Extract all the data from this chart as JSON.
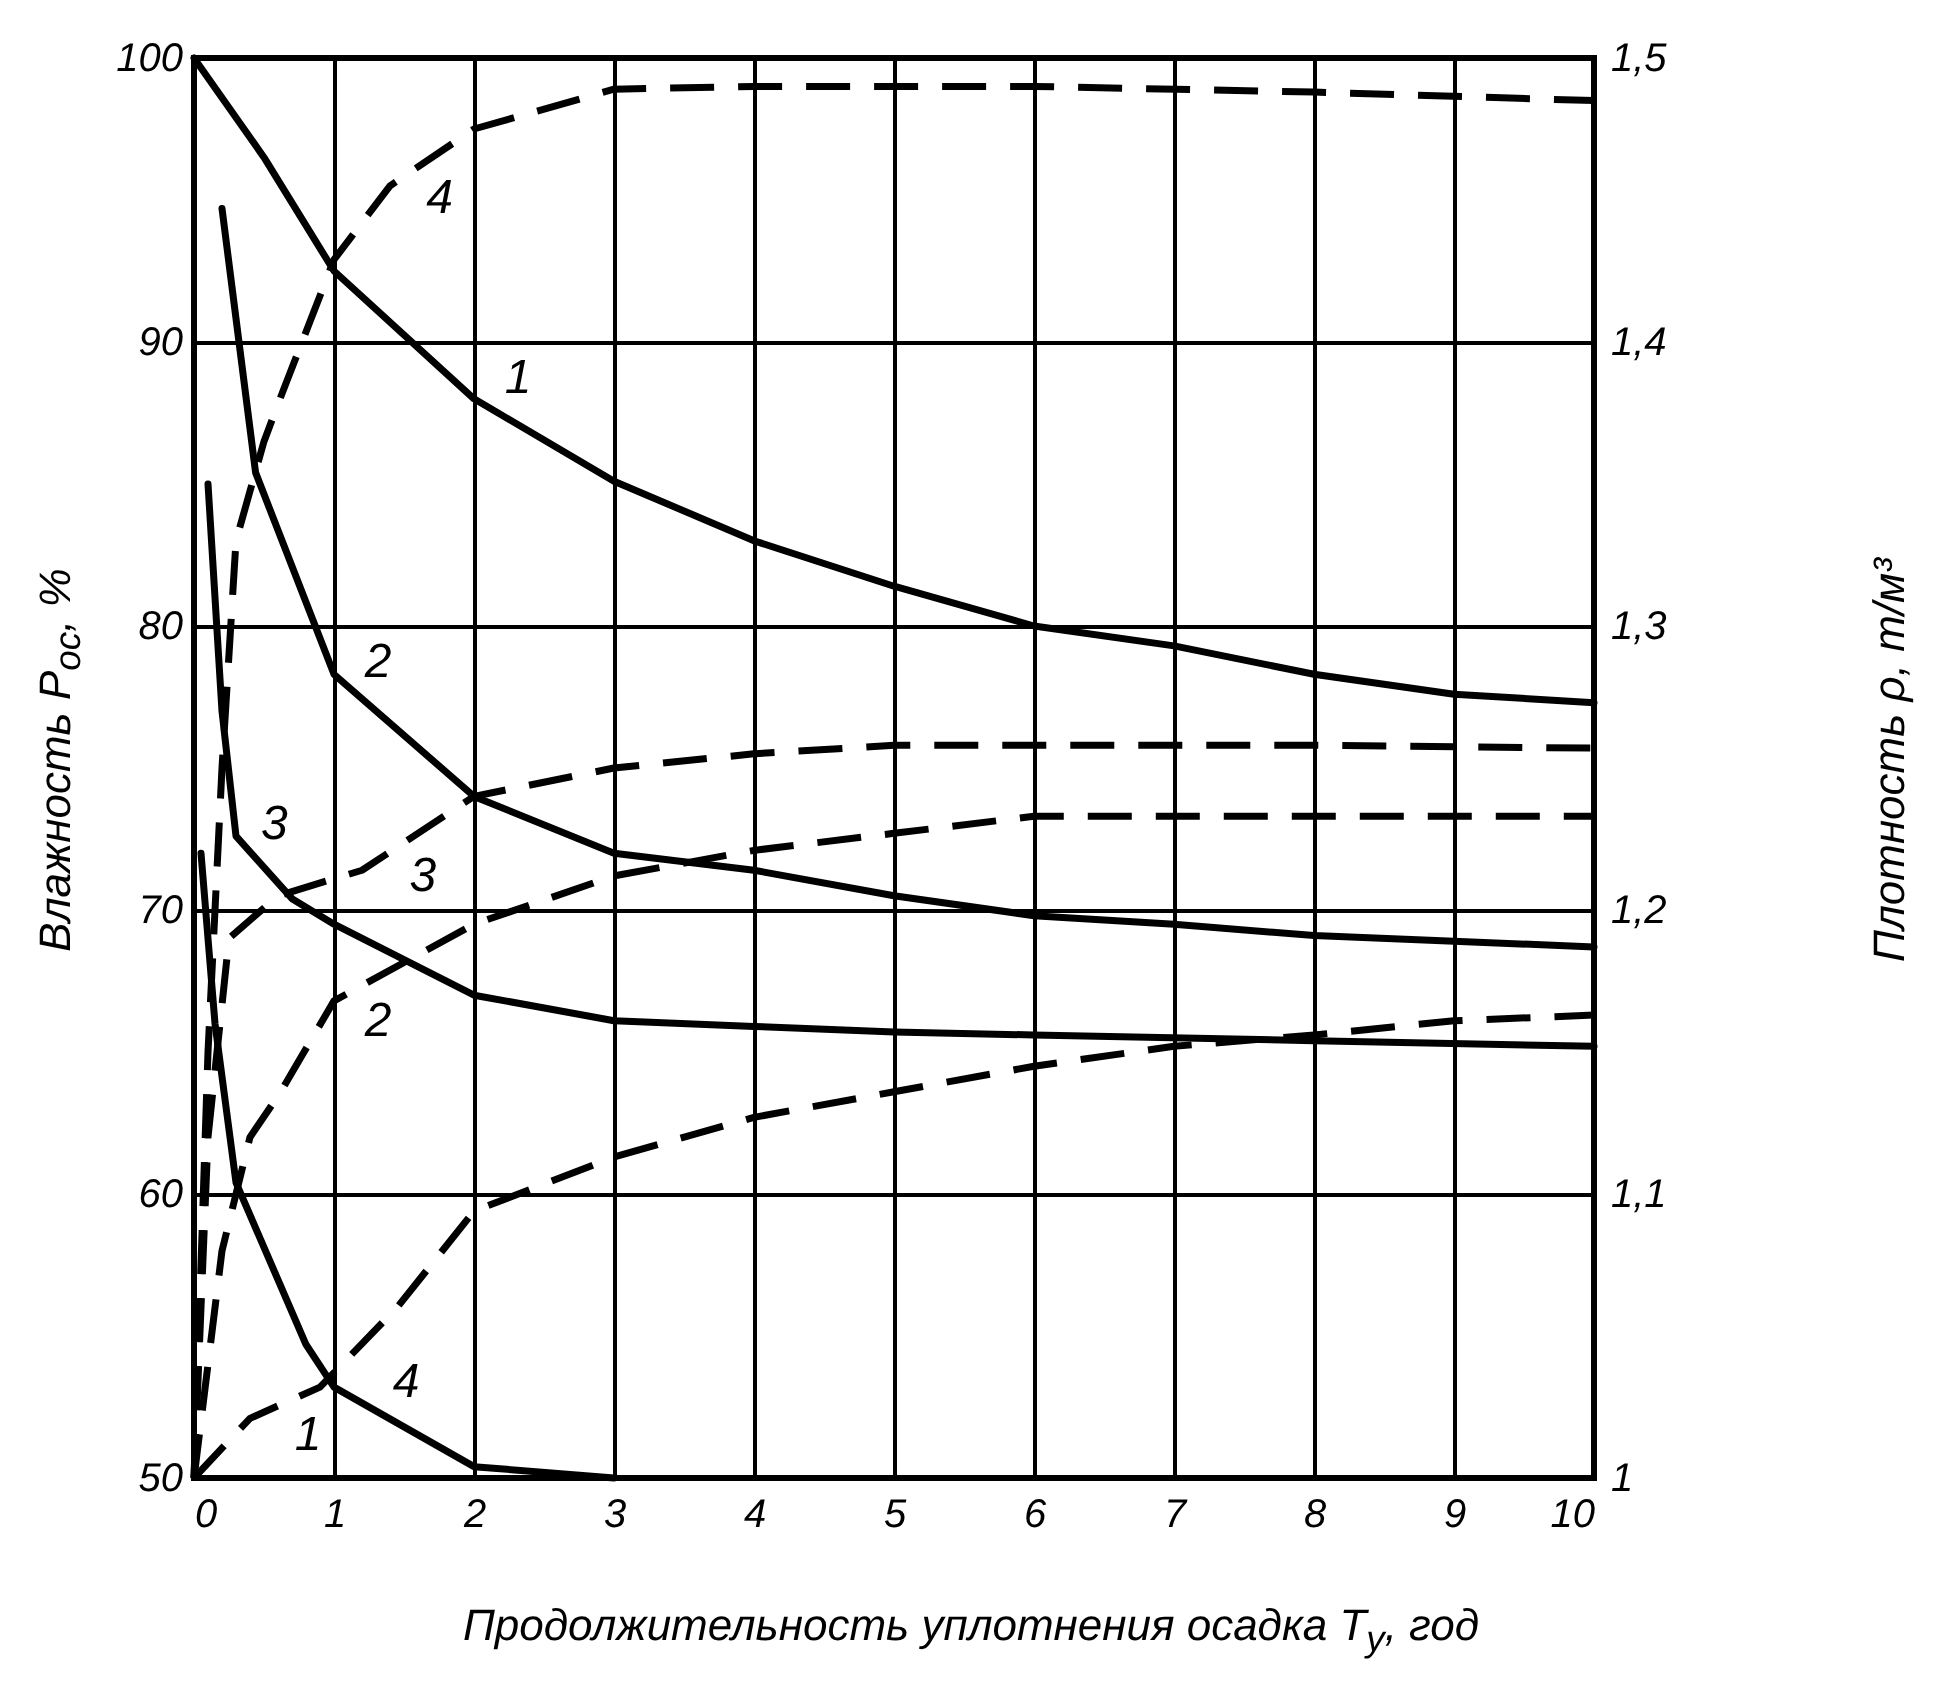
{
  "chart_data": {
    "type": "line",
    "xlabel": "Продолжительность уплотнения осадка T$_{у}$, год",
    "ylabel": "Влажность P$_{ос}$, %",
    "y2label": "Плотность ρ, т/м³",
    "xlim": [
      0,
      10
    ],
    "xticks": [
      0,
      1,
      2,
      3,
      4,
      5,
      6,
      7,
      8,
      9,
      10
    ],
    "ylim": [
      50,
      100
    ],
    "yticks": [
      50,
      60,
      70,
      80,
      90,
      100
    ],
    "y2lim": [
      1,
      1.5
    ],
    "y2ticks": [
      1,
      {
        "value": 1.1,
        "label": "1,1"
      },
      {
        "value": 1.2,
        "label": "1,2"
      },
      {
        "value": 1.3,
        "label": "1,3"
      },
      {
        "value": 1.4,
        "label": "1,4"
      },
      {
        "value": 1.5,
        "label": "1,5"
      }
    ],
    "grid": true,
    "series": [
      {
        "name": "1",
        "color": "#000000",
        "line_style": "solid",
        "x": [
          0,
          0.5,
          1,
          2,
          3,
          4,
          5,
          6,
          7,
          8,
          9,
          10
        ],
        "values": [
          100,
          96.5,
          92.5,
          88,
          85.1,
          83,
          81.4,
          80,
          79.3,
          78.3,
          77.6,
          77.3
        ]
      },
      {
        "name": "2",
        "color": "#000000",
        "line_style": "solid",
        "x": [
          0.2,
          0.44,
          1,
          2,
          3,
          4,
          5,
          6,
          7,
          8,
          9,
          10
        ],
        "values": [
          94.7,
          85.4,
          78.3,
          74,
          72,
          71.4,
          70.5,
          69.8,
          69.5,
          69.1,
          68.9,
          68.7
        ]
      },
      {
        "name": "3",
        "color": "#000000",
        "line_style": "solid",
        "x": [
          0.1,
          0.2,
          0.3,
          0.7,
          1,
          2,
          3,
          4,
          5,
          6,
          8,
          10
        ],
        "values": [
          85,
          77,
          72.6,
          70.4,
          69.5,
          67,
          66.1,
          65.9,
          65.7,
          65.6,
          65.4,
          65.2
        ]
      },
      {
        "name": "4",
        "color": "#000000",
        "line_style": "solid",
        "x": [
          0.05,
          0.15,
          0.3,
          0.8,
          1,
          2,
          3
        ],
        "values": [
          72,
          66,
          60.4,
          54.7,
          53.2,
          50.4,
          50
        ]
      },
      {
        "name": "1",
        "color": "#000000",
        "line_style": "dashed",
        "axis": "y2",
        "x": [
          0,
          0.4,
          0.9,
          1.45,
          2,
          3,
          4,
          5,
          6,
          7,
          8,
          9,
          10
        ],
        "values": [
          1,
          1.021,
          1.032,
          1.06,
          1.094,
          1.113,
          1.127,
          1.136,
          1.145,
          1.152,
          1.156,
          1.161,
          1.163
        ]
      },
      {
        "name": "2",
        "color": "#000000",
        "line_style": "dashed",
        "axis": "y2",
        "x": [
          0,
          0.2,
          0.4,
          0.62,
          1,
          2,
          3,
          4,
          5,
          6,
          8,
          10
        ],
        "values": [
          1,
          1.08,
          1.12,
          1.136,
          1.168,
          1.195,
          1.212,
          1.221,
          1.227,
          1.233,
          1.233,
          1.233
        ]
      },
      {
        "name": "3",
        "color": "#000000",
        "line_style": "dashed",
        "axis": "y2",
        "x": [
          0,
          0.1,
          0.25,
          0.6,
          1.2,
          2,
          3,
          4,
          5,
          6,
          8,
          10
        ],
        "values": [
          1,
          1.12,
          1.19,
          1.205,
          1.214,
          1.24,
          1.25,
          1.255,
          1.258,
          1.258,
          1.258,
          1.257
        ]
      },
      {
        "name": "4",
        "color": "#000000",
        "line_style": "dashed",
        "axis": "y2",
        "x": [
          0,
          0.1,
          0.2,
          0.3,
          0.5,
          0.63,
          1,
          1.4,
          2,
          3,
          4,
          6,
          8,
          10
        ],
        "values": [
          1,
          1.15,
          1.25,
          1.33,
          1.365,
          1.382,
          1.429,
          1.455,
          1.475,
          1.489,
          1.49,
          1.49,
          1.488,
          1.485
        ]
      }
    ]
  }
}
